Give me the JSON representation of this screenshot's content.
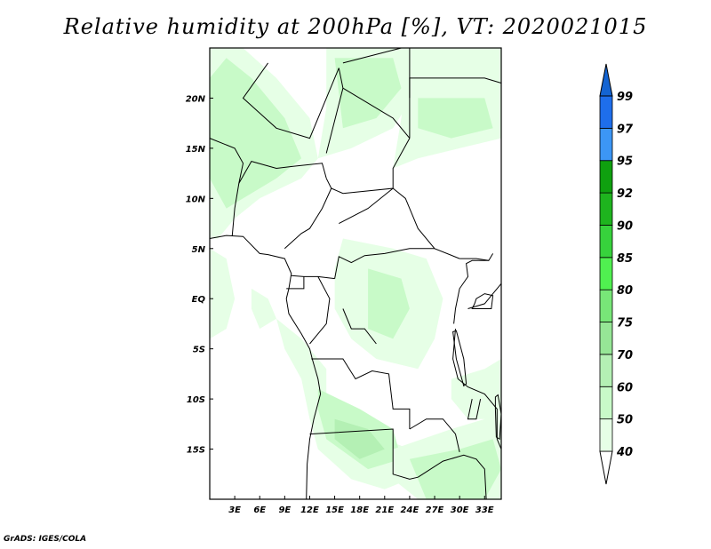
{
  "title": "Relative humidity at 200hPa [%], VT: 2020021015",
  "credit": "GrADS: IGES/COLA",
  "map": {
    "lon_range": [
      0,
      35
    ],
    "lat_range": [
      -20,
      25
    ],
    "lat_labels": [
      {
        "lat": 20,
        "text": "20N"
      },
      {
        "lat": 15,
        "text": "15N"
      },
      {
        "lat": 10,
        "text": "10N"
      },
      {
        "lat": 5,
        "text": "5N"
      },
      {
        "lat": 0,
        "text": "EQ"
      },
      {
        "lat": -5,
        "text": "5S"
      },
      {
        "lat": -10,
        "text": "10S"
      },
      {
        "lat": -15,
        "text": "15S"
      }
    ],
    "lon_labels": [
      {
        "lon": 3,
        "text": "3E"
      },
      {
        "lon": 6,
        "text": "6E"
      },
      {
        "lon": 9,
        "text": "9E"
      },
      {
        "lon": 12,
        "text": "12E"
      },
      {
        "lon": 15,
        "text": "15E"
      },
      {
        "lon": 18,
        "text": "18E"
      },
      {
        "lon": 21,
        "text": "21E"
      },
      {
        "lon": 24,
        "text": "24E"
      },
      {
        "lon": 27,
        "text": "27E"
      },
      {
        "lon": 30,
        "text": "30E"
      },
      {
        "lon": 33,
        "text": "33E"
      }
    ]
  },
  "colorbar": {
    "labels": [
      "40",
      "50",
      "60",
      "70",
      "75",
      "80",
      "85",
      "90",
      "92",
      "95",
      "97",
      "99"
    ],
    "colors": [
      "#e6ffe6",
      "#c8fac8",
      "#b4f0b4",
      "#96e696",
      "#78e678",
      "#50f050",
      "#37d23c",
      "#1eb41e",
      "#0fa00f",
      "#3c96f5",
      "#1e6eeb",
      "#1464d2"
    ],
    "below_color": "#ffffff"
  }
}
